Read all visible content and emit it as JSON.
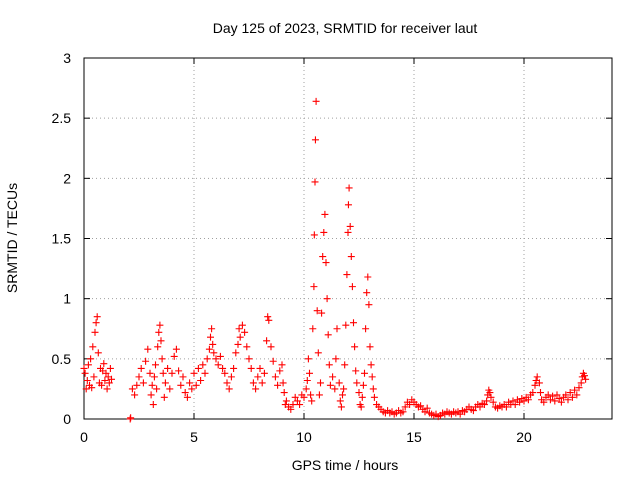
{
  "chart_data": {
    "type": "scatter",
    "title": "Day 125 of 2023, SRMTID for receiver laut",
    "xlabel": "GPS time / hours",
    "ylabel": "SRMTID / TECUs",
    "xlim": [
      0,
      24
    ],
    "ylim": [
      0,
      3
    ],
    "xticks": [
      0,
      5,
      10,
      15,
      20
    ],
    "xtick_labels": [
      "0",
      "5",
      "10",
      "15",
      "20"
    ],
    "yticks": [
      0,
      0.5,
      1,
      1.5,
      2,
      2.5,
      3
    ],
    "ytick_labels": [
      "0",
      "0.5",
      "1",
      "1.5",
      "2",
      "2.5",
      "3"
    ],
    "grid": true,
    "marker": "+",
    "color": "#ff0000",
    "series": [
      {
        "name": "SRMTID",
        "points": [
          [
            0.0,
            0.42
          ],
          [
            0.05,
            0.38
          ],
          [
            0.1,
            0.25
          ],
          [
            0.15,
            0.32
          ],
          [
            0.2,
            0.45
          ],
          [
            0.25,
            0.28
          ],
          [
            0.3,
            0.5
          ],
          [
            0.35,
            0.26
          ],
          [
            0.4,
            0.6
          ],
          [
            0.45,
            0.35
          ],
          [
            0.5,
            0.72
          ],
          [
            0.55,
            0.8
          ],
          [
            0.6,
            0.85
          ],
          [
            0.65,
            0.55
          ],
          [
            0.7,
            0.3
          ],
          [
            0.75,
            0.42
          ],
          [
            0.8,
            0.28
          ],
          [
            0.85,
            0.4
          ],
          [
            0.9,
            0.46
          ],
          [
            0.95,
            0.32
          ],
          [
            1.0,
            0.38
          ],
          [
            1.05,
            0.25
          ],
          [
            1.1,
            0.35
          ],
          [
            1.15,
            0.3
          ],
          [
            1.2,
            0.42
          ],
          [
            1.25,
            0.33
          ],
          [
            2.1,
            0.0
          ],
          [
            2.12,
            0.01
          ],
          [
            2.2,
            0.25
          ],
          [
            2.3,
            0.2
          ],
          [
            2.4,
            0.28
          ],
          [
            2.5,
            0.35
          ],
          [
            2.6,
            0.42
          ],
          [
            2.7,
            0.3
          ],
          [
            2.8,
            0.48
          ],
          [
            2.9,
            0.58
          ],
          [
            3.0,
            0.38
          ],
          [
            3.05,
            0.2
          ],
          [
            3.1,
            0.28
          ],
          [
            3.15,
            0.12
          ],
          [
            3.2,
            0.35
          ],
          [
            3.25,
            0.45
          ],
          [
            3.3,
            0.25
          ],
          [
            3.35,
            0.6
          ],
          [
            3.4,
            0.72
          ],
          [
            3.45,
            0.78
          ],
          [
            3.5,
            0.65
          ],
          [
            3.55,
            0.5
          ],
          [
            3.6,
            0.38
          ],
          [
            3.65,
            0.18
          ],
          [
            3.7,
            0.3
          ],
          [
            3.8,
            0.42
          ],
          [
            3.9,
            0.25
          ],
          [
            4.0,
            0.38
          ],
          [
            4.1,
            0.52
          ],
          [
            4.2,
            0.58
          ],
          [
            4.3,
            0.4
          ],
          [
            4.4,
            0.28
          ],
          [
            4.5,
            0.35
          ],
          [
            4.6,
            0.22
          ],
          [
            4.7,
            0.18
          ],
          [
            4.8,
            0.3
          ],
          [
            4.9,
            0.25
          ],
          [
            5.0,
            0.38
          ],
          [
            5.1,
            0.28
          ],
          [
            5.2,
            0.42
          ],
          [
            5.3,
            0.32
          ],
          [
            5.4,
            0.45
          ],
          [
            5.5,
            0.38
          ],
          [
            5.6,
            0.5
          ],
          [
            5.7,
            0.58
          ],
          [
            5.75,
            0.68
          ],
          [
            5.8,
            0.75
          ],
          [
            5.85,
            0.62
          ],
          [
            5.9,
            0.55
          ],
          [
            6.0,
            0.5
          ],
          [
            6.1,
            0.45
          ],
          [
            6.2,
            0.52
          ],
          [
            6.3,
            0.42
          ],
          [
            6.4,
            0.38
          ],
          [
            6.5,
            0.3
          ],
          [
            6.6,
            0.25
          ],
          [
            6.7,
            0.35
          ],
          [
            6.8,
            0.42
          ],
          [
            6.9,
            0.55
          ],
          [
            7.0,
            0.62
          ],
          [
            7.05,
            0.75
          ],
          [
            7.1,
            0.68
          ],
          [
            7.2,
            0.78
          ],
          [
            7.3,
            0.72
          ],
          [
            7.4,
            0.6
          ],
          [
            7.5,
            0.5
          ],
          [
            7.6,
            0.42
          ],
          [
            7.7,
            0.3
          ],
          [
            7.8,
            0.25
          ],
          [
            7.9,
            0.35
          ],
          [
            8.0,
            0.42
          ],
          [
            8.1,
            0.3
          ],
          [
            8.2,
            0.38
          ],
          [
            8.3,
            0.65
          ],
          [
            8.35,
            0.85
          ],
          [
            8.4,
            0.82
          ],
          [
            8.5,
            0.6
          ],
          [
            8.6,
            0.48
          ],
          [
            8.7,
            0.35
          ],
          [
            8.8,
            0.28
          ],
          [
            8.9,
            0.4
          ],
          [
            9.0,
            0.45
          ],
          [
            9.05,
            0.3
          ],
          [
            9.1,
            0.22
          ],
          [
            9.15,
            0.12
          ],
          [
            9.2,
            0.15
          ],
          [
            9.3,
            0.1
          ],
          [
            9.4,
            0.08
          ],
          [
            9.5,
            0.12
          ],
          [
            9.6,
            0.18
          ],
          [
            9.7,
            0.15
          ],
          [
            9.8,
            0.12
          ],
          [
            9.9,
            0.2
          ],
          [
            10.0,
            0.18
          ],
          [
            10.1,
            0.25
          ],
          [
            10.15,
            0.32
          ],
          [
            10.2,
            0.5
          ],
          [
            10.25,
            0.38
          ],
          [
            10.3,
            0.2
          ],
          [
            10.35,
            0.15
          ],
          [
            10.4,
            0.75
          ],
          [
            10.45,
            1.1
          ],
          [
            10.47,
            1.53
          ],
          [
            10.5,
            1.97
          ],
          [
            10.52,
            2.32
          ],
          [
            10.55,
            2.64
          ],
          [
            10.6,
            0.9
          ],
          [
            10.65,
            0.55
          ],
          [
            10.7,
            0.2
          ],
          [
            10.75,
            0.3
          ],
          [
            10.8,
            0.88
          ],
          [
            10.85,
            1.35
          ],
          [
            10.9,
            1.55
          ],
          [
            10.95,
            1.7
          ],
          [
            11.0,
            1.3
          ],
          [
            11.05,
            1.0
          ],
          [
            11.1,
            0.7
          ],
          [
            11.15,
            0.45
          ],
          [
            11.2,
            0.28
          ],
          [
            11.3,
            0.35
          ],
          [
            11.4,
            0.25
          ],
          [
            11.45,
            0.5
          ],
          [
            11.5,
            0.75
          ],
          [
            11.6,
            0.3
          ],
          [
            11.65,
            0.15
          ],
          [
            11.7,
            0.1
          ],
          [
            11.75,
            0.2
          ],
          [
            11.8,
            0.25
          ],
          [
            11.85,
            0.45
          ],
          [
            11.9,
            0.78
          ],
          [
            11.95,
            1.2
          ],
          [
            12.0,
            1.55
          ],
          [
            12.02,
            1.78
          ],
          [
            12.05,
            1.92
          ],
          [
            12.1,
            1.6
          ],
          [
            12.15,
            1.35
          ],
          [
            12.2,
            1.1
          ],
          [
            12.25,
            0.8
          ],
          [
            12.3,
            0.6
          ],
          [
            12.35,
            0.4
          ],
          [
            12.4,
            0.3
          ],
          [
            12.5,
            0.22
          ],
          [
            12.55,
            0.12
          ],
          [
            12.6,
            0.1
          ],
          [
            12.65,
            0.18
          ],
          [
            12.7,
            0.28
          ],
          [
            12.75,
            0.38
          ],
          [
            12.8,
            0.75
          ],
          [
            12.85,
            1.05
          ],
          [
            12.9,
            1.18
          ],
          [
            12.95,
            0.95
          ],
          [
            13.0,
            0.6
          ],
          [
            13.05,
            0.45
          ],
          [
            13.1,
            0.35
          ],
          [
            13.15,
            0.25
          ],
          [
            13.2,
            0.18
          ],
          [
            13.3,
            0.12
          ],
          [
            13.4,
            0.1
          ],
          [
            13.5,
            0.08
          ],
          [
            13.6,
            0.06
          ],
          [
            13.7,
            0.05
          ],
          [
            13.8,
            0.07
          ],
          [
            13.9,
            0.05
          ],
          [
            14.0,
            0.06
          ],
          [
            14.1,
            0.04
          ],
          [
            14.2,
            0.05
          ],
          [
            14.3,
            0.07
          ],
          [
            14.4,
            0.05
          ],
          [
            14.5,
            0.06
          ],
          [
            14.6,
            0.1
          ],
          [
            14.7,
            0.14
          ],
          [
            14.8,
            0.12
          ],
          [
            14.9,
            0.16
          ],
          [
            15.0,
            0.14
          ],
          [
            15.1,
            0.12
          ],
          [
            15.2,
            0.1
          ],
          [
            15.3,
            0.11
          ],
          [
            15.4,
            0.08
          ],
          [
            15.5,
            0.06
          ],
          [
            15.6,
            0.09
          ],
          [
            15.7,
            0.05
          ],
          [
            15.8,
            0.04
          ],
          [
            15.9,
            0.03
          ],
          [
            16.0,
            0.04
          ],
          [
            16.1,
            0.02
          ],
          [
            16.2,
            0.03
          ],
          [
            16.3,
            0.05
          ],
          [
            16.4,
            0.04
          ],
          [
            16.5,
            0.06
          ],
          [
            16.6,
            0.05
          ],
          [
            16.7,
            0.04
          ],
          [
            16.8,
            0.06
          ],
          [
            16.9,
            0.05
          ],
          [
            17.0,
            0.06
          ],
          [
            17.1,
            0.04
          ],
          [
            17.2,
            0.07
          ],
          [
            17.3,
            0.06
          ],
          [
            17.4,
            0.08
          ],
          [
            17.5,
            0.1
          ],
          [
            17.6,
            0.08
          ],
          [
            17.7,
            0.07
          ],
          [
            17.8,
            0.1
          ],
          [
            17.9,
            0.12
          ],
          [
            18.0,
            0.1
          ],
          [
            18.1,
            0.13
          ],
          [
            18.2,
            0.12
          ],
          [
            18.3,
            0.15
          ],
          [
            18.35,
            0.2
          ],
          [
            18.4,
            0.24
          ],
          [
            18.45,
            0.22
          ],
          [
            18.5,
            0.18
          ],
          [
            18.6,
            0.14
          ],
          [
            18.7,
            0.1
          ],
          [
            18.8,
            0.09
          ],
          [
            18.9,
            0.11
          ],
          [
            19.0,
            0.1
          ],
          [
            19.1,
            0.12
          ],
          [
            19.2,
            0.1
          ],
          [
            19.3,
            0.14
          ],
          [
            19.4,
            0.12
          ],
          [
            19.5,
            0.15
          ],
          [
            19.6,
            0.12
          ],
          [
            19.7,
            0.16
          ],
          [
            19.8,
            0.14
          ],
          [
            19.9,
            0.17
          ],
          [
            20.0,
            0.15
          ],
          [
            20.1,
            0.18
          ],
          [
            20.2,
            0.16
          ],
          [
            20.3,
            0.2
          ],
          [
            20.4,
            0.22
          ],
          [
            20.5,
            0.28
          ],
          [
            20.55,
            0.32
          ],
          [
            20.6,
            0.35
          ],
          [
            20.7,
            0.3
          ],
          [
            20.75,
            0.22
          ],
          [
            20.8,
            0.16
          ],
          [
            20.9,
            0.14
          ],
          [
            21.0,
            0.18
          ],
          [
            21.1,
            0.2
          ],
          [
            21.2,
            0.16
          ],
          [
            21.3,
            0.19
          ],
          [
            21.4,
            0.15
          ],
          [
            21.5,
            0.2
          ],
          [
            21.6,
            0.17
          ],
          [
            21.7,
            0.14
          ],
          [
            21.8,
            0.18
          ],
          [
            21.9,
            0.2
          ],
          [
            22.0,
            0.16
          ],
          [
            22.1,
            0.22
          ],
          [
            22.2,
            0.18
          ],
          [
            22.3,
            0.24
          ],
          [
            22.4,
            0.2
          ],
          [
            22.5,
            0.26
          ],
          [
            22.6,
            0.3
          ],
          [
            22.65,
            0.35
          ],
          [
            22.7,
            0.38
          ],
          [
            22.75,
            0.36
          ],
          [
            22.8,
            0.33
          ]
        ]
      }
    ]
  }
}
